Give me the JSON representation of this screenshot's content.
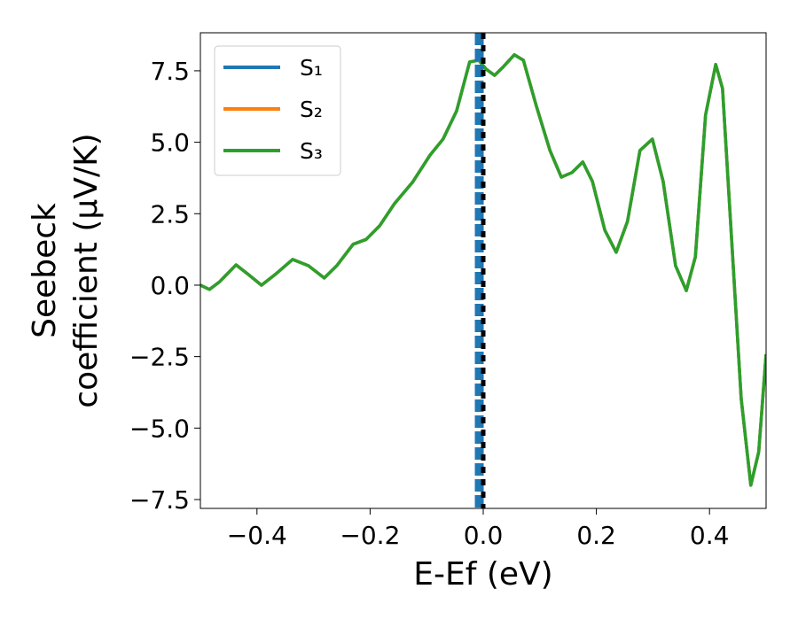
{
  "chart_data": {
    "type": "line",
    "xlabel": "E-Ef (eV)",
    "ylabel": [
      "Seebeck",
      "coefficient  (μV/K)"
    ],
    "xlim": [
      -0.5,
      0.5
    ],
    "ylim": [
      -7.81,
      8.83
    ],
    "xticks": [
      {
        "value": -0.4,
        "label": "−0.4"
      },
      {
        "value": -0.2,
        "label": "−0.2"
      },
      {
        "value": 0,
        "label": "0.0"
      },
      0.2,
      0.4
    ],
    "yticks": [
      {
        "value": -7.5,
        "label": "−7.5"
      },
      {
        "value": -5,
        "label": "−5.0"
      },
      {
        "value": -2.5,
        "label": "−2.5"
      },
      {
        "value": 0,
        "label": "0.0"
      },
      2.5,
      {
        "value": 5,
        "label": "5.0"
      },
      7.5
    ],
    "legend": "upper left",
    "vlines": [
      {
        "x": -0.007,
        "color": "#1f77b4",
        "style": "dashed"
      },
      {
        "x": 0,
        "color": "#000000",
        "style": "dashed"
      }
    ],
    "x": [
      -0.5,
      -0.484,
      -0.466,
      -0.437,
      -0.415,
      -0.392,
      -0.368,
      -0.337,
      -0.309,
      -0.281,
      -0.259,
      -0.23,
      -0.207,
      -0.183,
      -0.157,
      -0.125,
      -0.094,
      -0.071,
      -0.047,
      -0.024,
      -0.008,
      0.005,
      0.02,
      0.036,
      0.055,
      0.071,
      0.094,
      0.118,
      0.138,
      0.157,
      0.176,
      0.193,
      0.215,
      0.235,
      0.255,
      0.277,
      0.299,
      0.318,
      0.34,
      0.359,
      0.375,
      0.393,
      0.411,
      0.423,
      0.44,
      0.456,
      0.473,
      0.487,
      0.5
    ],
    "series": [
      {
        "name": "S₁",
        "color": "#1f77b4",
        "values": [
          0,
          -0.15,
          0.12,
          0.71,
          0.37,
          0,
          0.37,
          0.9,
          0.68,
          0.25,
          0.68,
          1.43,
          1.6,
          2.08,
          2.85,
          3.6,
          4.55,
          5.11,
          6.1,
          7.81,
          7.87,
          7.56,
          7.34,
          7.65,
          8.06,
          7.87,
          6.26,
          4.71,
          3.78,
          3.94,
          4.31,
          3.63,
          1.92,
          1.15,
          2.23,
          4.71,
          5.11,
          3.63,
          0.68,
          -0.19,
          0.99,
          5.95,
          7.72,
          6.88,
          1.3,
          -3.97,
          -7.0,
          -5.83,
          -2.42
        ]
      },
      {
        "name": "S₂",
        "color": "#ff7f0e",
        "values": [
          0,
          -0.15,
          0.12,
          0.71,
          0.37,
          0,
          0.37,
          0.9,
          0.68,
          0.25,
          0.68,
          1.43,
          1.6,
          2.08,
          2.85,
          3.6,
          4.55,
          5.11,
          6.1,
          7.81,
          7.87,
          7.56,
          7.34,
          7.65,
          8.06,
          7.87,
          6.26,
          4.71,
          3.78,
          3.94,
          4.31,
          3.63,
          1.92,
          1.15,
          2.23,
          4.71,
          5.11,
          3.63,
          0.68,
          -0.19,
          0.99,
          5.95,
          7.72,
          6.88,
          1.3,
          -3.97,
          -7.0,
          -5.83,
          -2.42
        ]
      },
      {
        "name": "S₃",
        "color": "#2ca02c",
        "values": [
          0,
          -0.15,
          0.12,
          0.71,
          0.37,
          0,
          0.37,
          0.9,
          0.68,
          0.25,
          0.68,
          1.43,
          1.6,
          2.08,
          2.85,
          3.6,
          4.55,
          5.11,
          6.1,
          7.81,
          7.87,
          7.56,
          7.34,
          7.65,
          8.06,
          7.87,
          6.26,
          4.71,
          3.78,
          3.94,
          4.31,
          3.63,
          1.92,
          1.15,
          2.23,
          4.71,
          5.11,
          3.63,
          0.68,
          -0.19,
          0.99,
          5.95,
          7.72,
          6.88,
          1.3,
          -3.97,
          -7.0,
          -5.83,
          -2.42
        ]
      }
    ]
  }
}
